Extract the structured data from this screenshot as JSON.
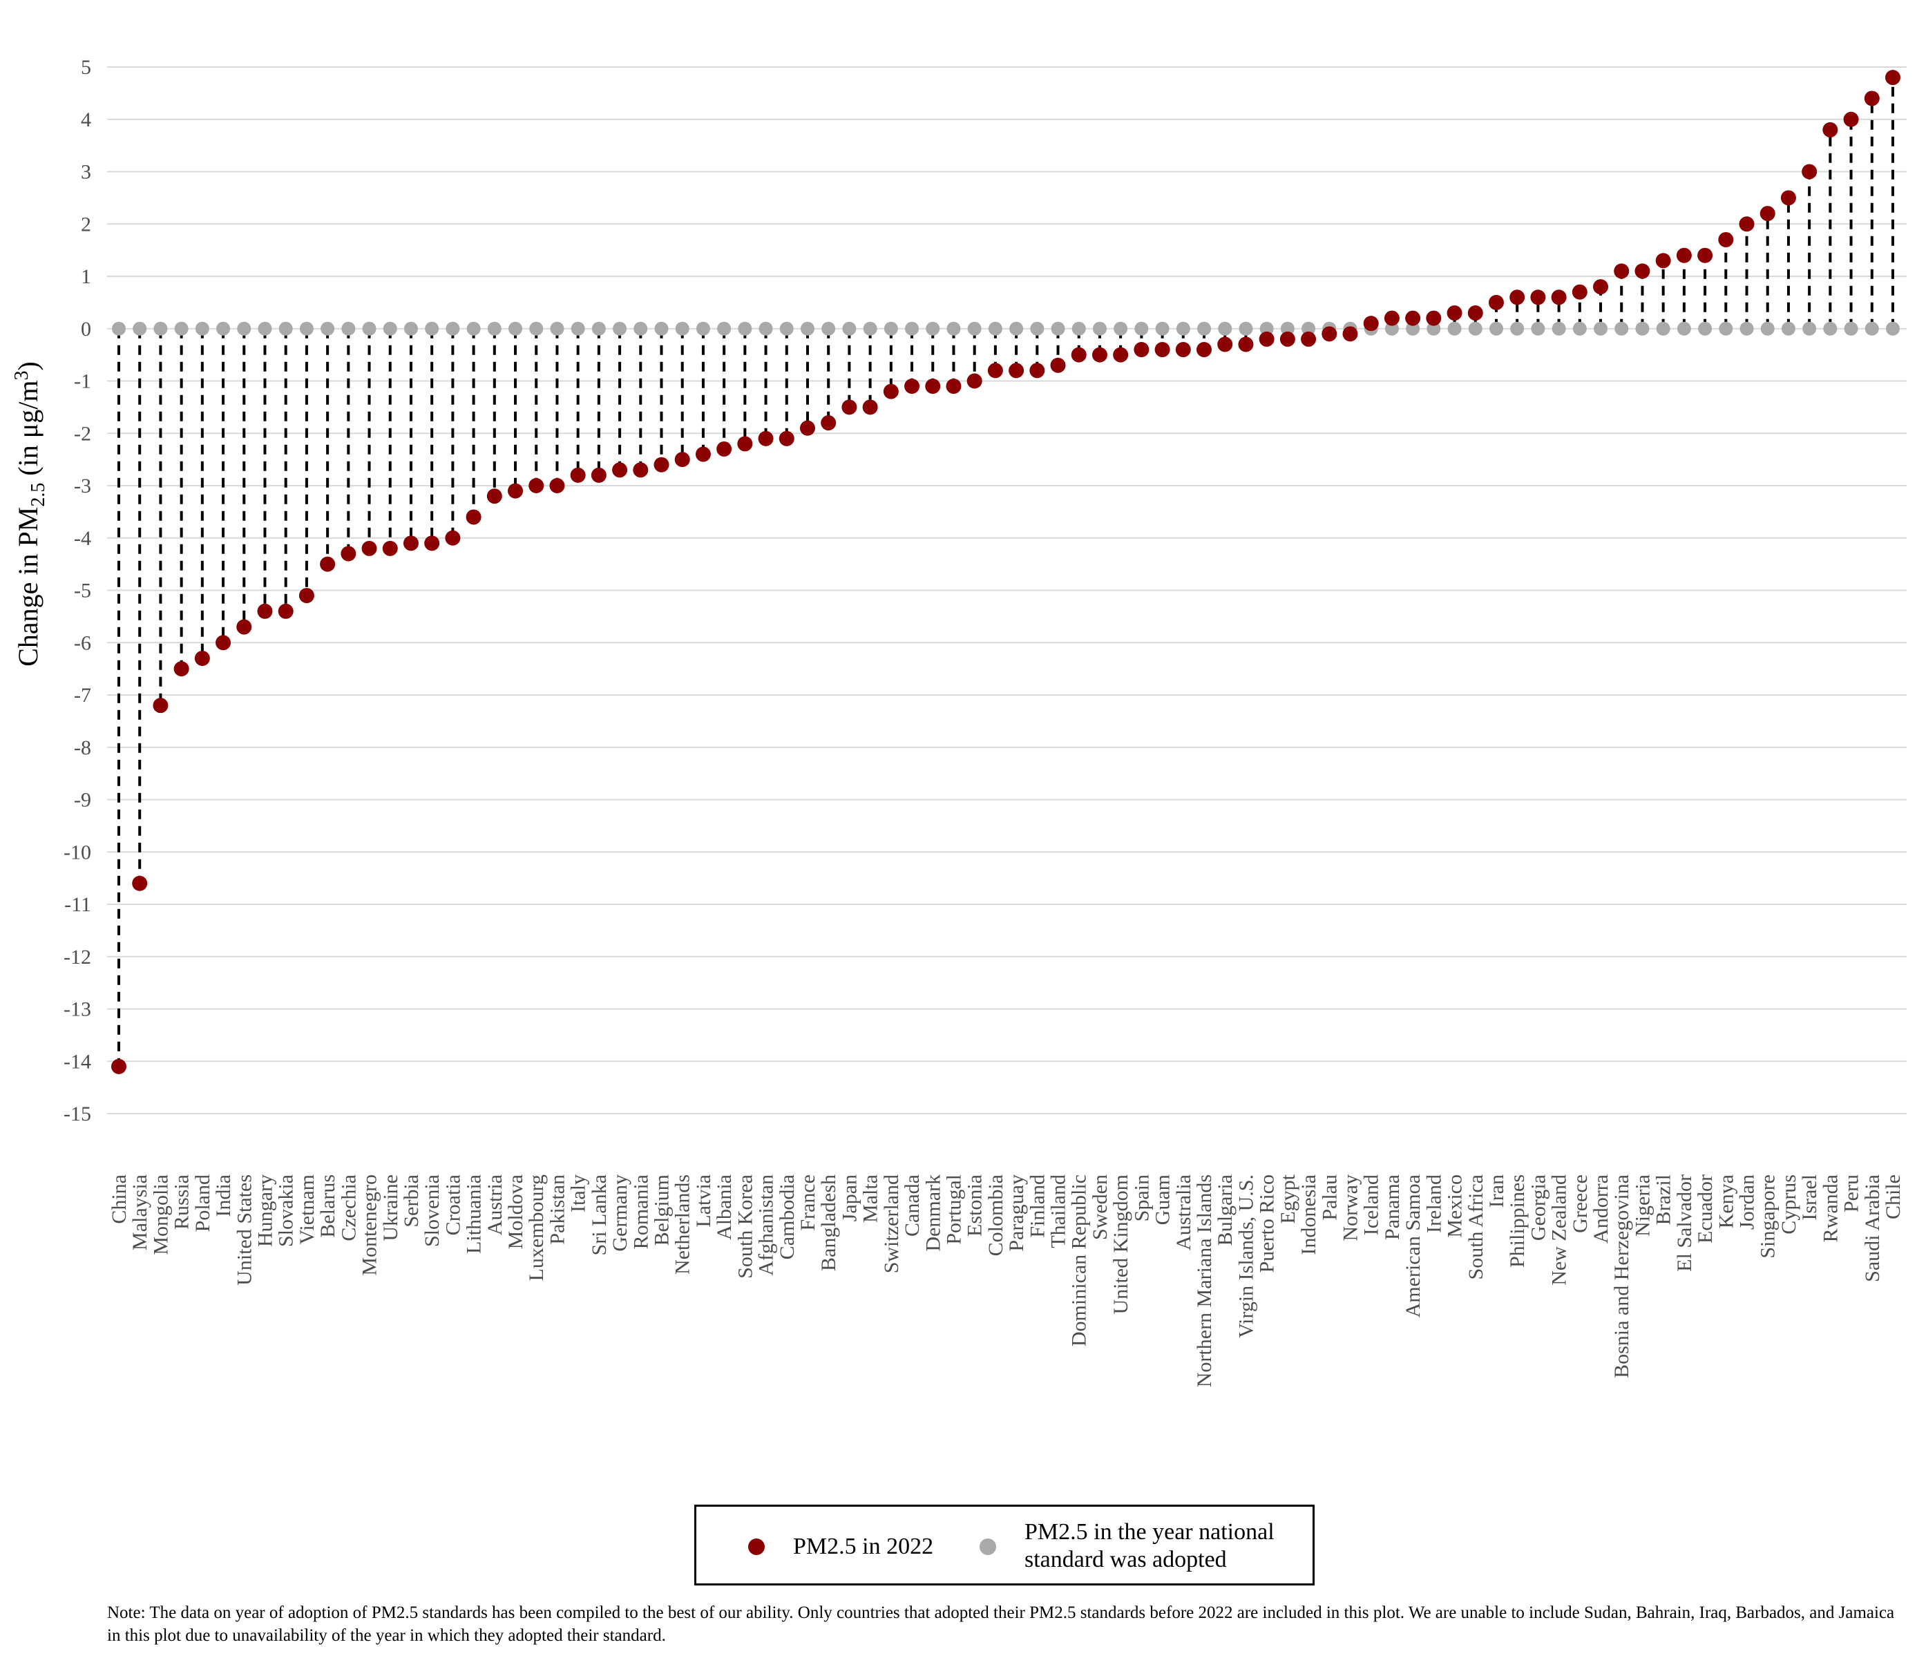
{
  "chart_data": {
    "type": "scatter",
    "ylabel_prefix": "Change in PM",
    "ylabel_sub": "2.5",
    "ylabel_suffix": " (in μg/m",
    "ylabel_sup": "3",
    "ylabel_end": ")",
    "ylim": [
      -15,
      5
    ],
    "yticks": [
      5,
      4,
      3,
      2,
      1,
      0,
      -1,
      -2,
      -3,
      -4,
      -5,
      -6,
      -7,
      -8,
      -9,
      -10,
      -11,
      -12,
      -13,
      -14,
      -15
    ],
    "grid": true,
    "legend_position": "bottom",
    "colors": {
      "pm2022": "#8b0000",
      "baseline": "#a9a9a9",
      "connector": "#000000",
      "grid": "#d9d9d9"
    },
    "categories": [
      "China",
      "Malaysia",
      "Mongolia",
      "Russia",
      "Poland",
      "India",
      "United States",
      "Hungary",
      "Slovakia",
      "Vietnam",
      "Belarus",
      "Czechia",
      "Montenegro",
      "Ukraine",
      "Serbia",
      "Slovenia",
      "Croatia",
      "Lithuania",
      "Austria",
      "Moldova",
      "Luxembourg",
      "Pakistan",
      "Italy",
      "Sri Lanka",
      "Germany",
      "Romania",
      "Belgium",
      "Netherlands",
      "Latvia",
      "Albania",
      "South Korea",
      "Afghanistan",
      "Cambodia",
      "France",
      "Bangladesh",
      "Japan",
      "Malta",
      "Switzerland",
      "Canada",
      "Denmark",
      "Portugal",
      "Estonia",
      "Colombia",
      "Paraguay",
      "Finland",
      "Thailand",
      "Dominican Republic",
      "Sweden",
      "United Kingdom",
      "Spain",
      "Guam",
      "Australia",
      "Northern Mariana Islands",
      "Bulgaria",
      "Virgin Islands, U.S.",
      "Puerto Rico",
      "Egypt",
      "Indonesia",
      "Palau",
      "Norway",
      "Iceland",
      "Panama",
      "American Samoa",
      "Ireland",
      "Mexico",
      "South Africa",
      "Iran",
      "Philippines",
      "Georgia",
      "New Zealand",
      "Greece",
      "Andorra",
      "Bosnia and Herzegovina",
      "Nigeria",
      "Brazil",
      "El Salvador",
      "Ecuador",
      "Kenya",
      "Jordan",
      "Singapore",
      "Cyprus",
      "Israel",
      "Rwanda",
      "Peru",
      "Saudi Arabia",
      "Chile"
    ],
    "series": [
      {
        "name": "PM2.5 in 2022",
        "values": [
          -14.1,
          -10.6,
          -7.2,
          -6.5,
          -6.3,
          -6.0,
          -5.7,
          -5.4,
          -5.4,
          -5.1,
          -4.5,
          -4.3,
          -4.2,
          -4.2,
          -4.1,
          -4.1,
          -4.0,
          -3.6,
          -3.2,
          -3.1,
          -3.0,
          -3.0,
          -2.8,
          -2.8,
          -2.7,
          -2.7,
          -2.6,
          -2.5,
          -2.4,
          -2.3,
          -2.2,
          -2.1,
          -2.1,
          -1.9,
          -1.8,
          -1.5,
          -1.5,
          -1.2,
          -1.1,
          -1.1,
          -1.1,
          -1.0,
          -0.8,
          -0.8,
          -0.8,
          -0.7,
          -0.5,
          -0.5,
          -0.5,
          -0.4,
          -0.4,
          -0.4,
          -0.4,
          -0.3,
          -0.3,
          -0.2,
          -0.2,
          -0.2,
          -0.1,
          -0.1,
          0.1,
          0.2,
          0.2,
          0.2,
          0.3,
          0.3,
          0.5,
          0.6,
          0.6,
          0.6,
          0.7,
          0.8,
          1.1,
          1.1,
          1.3,
          1.4,
          1.4,
          1.7,
          2.0,
          2.2,
          2.5,
          3.0,
          3.8,
          4.0,
          4.4,
          4.8
        ]
      },
      {
        "name": "PM2.5 in the year national standard was adopted",
        "values": [
          0,
          0,
          0,
          0,
          0,
          0,
          0,
          0,
          0,
          0,
          0,
          0,
          0,
          0,
          0,
          0,
          0,
          0,
          0,
          0,
          0,
          0,
          0,
          0,
          0,
          0,
          0,
          0,
          0,
          0,
          0,
          0,
          0,
          0,
          0,
          0,
          0,
          0,
          0,
          0,
          0,
          0,
          0,
          0,
          0,
          0,
          0,
          0,
          0,
          0,
          0,
          0,
          0,
          0,
          0,
          0,
          0,
          0,
          0,
          0,
          0,
          0,
          0,
          0,
          0,
          0,
          0,
          0,
          0,
          0,
          0,
          0,
          0,
          0,
          0,
          0,
          0,
          0,
          0,
          0,
          0,
          0,
          0,
          0,
          0,
          0
        ]
      }
    ]
  },
  "legend": {
    "item1": "PM2.5 in 2022",
    "item2_line1": "PM2.5 in the year national",
    "item2_line2": "standard was adopted"
  },
  "note": "Note: The data on year of adoption of PM2.5 standards has been compiled to the best of our ability. Only countries that adopted their PM2.5 standards before 2022 are included in this plot. We are unable to include Sudan, Bahrain, Iraq, Barbados, and Jamaica in this plot due to unavailability of the year in which they adopted their standard."
}
